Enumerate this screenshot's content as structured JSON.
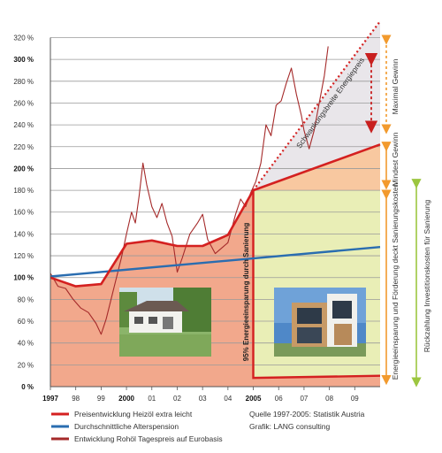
{
  "chart_data": {
    "type": "line",
    "x_ticks": [
      "1997",
      "98",
      "99",
      "2000",
      "01",
      "02",
      "03",
      "04",
      "2005",
      "06",
      "07",
      "08",
      "09"
    ],
    "x_ticks_bold": [
      "1997",
      "2000",
      "2005"
    ],
    "xlim": [
      1997,
      2010
    ],
    "ylim": [
      0,
      320
    ],
    "y_ticks": [
      {
        "v": 0,
        "label": "0 %"
      },
      {
        "v": 20,
        "label": "20 %"
      },
      {
        "v": 40,
        "label": "40 %"
      },
      {
        "v": 60,
        "label": "60 %"
      },
      {
        "v": 80,
        "label": "80 %"
      },
      {
        "v": 100,
        "label": "100 %"
      },
      {
        "v": 120,
        "label": "120 %"
      },
      {
        "v": 140,
        "label": "140 %"
      },
      {
        "v": 160,
        "label": "160 %"
      },
      {
        "v": 180,
        "label": "180 %"
      },
      {
        "v": 200,
        "label": "200 %"
      },
      {
        "v": 220,
        "label": "220 %"
      },
      {
        "v": 240,
        "label": "240 %"
      },
      {
        "v": 260,
        "label": "260 %"
      },
      {
        "v": 280,
        "label": "280 %"
      },
      {
        "v": 300,
        "label": "300 %"
      },
      {
        "v": 320,
        "label": "320 %"
      }
    ],
    "y_ticks_bold": [
      0,
      100,
      200,
      300
    ],
    "series": [
      {
        "name": "Preisentwicklung Heizöl extra leicht",
        "color": "#d42020",
        "points": [
          [
            1997.0,
            100
          ],
          [
            1998.0,
            92
          ],
          [
            1999.0,
            94
          ],
          [
            2000.0,
            131
          ],
          [
            2001.0,
            134
          ],
          [
            2002.0,
            129
          ],
          [
            2003.0,
            129
          ],
          [
            2004.0,
            139
          ],
          [
            2005.0,
            180
          ],
          [
            2010.0,
            222
          ]
        ]
      },
      {
        "name": "Durchschnittliche Alterspension",
        "color": "#2a6db0",
        "points": [
          [
            1997.0,
            101
          ],
          [
            2010.0,
            128
          ]
        ]
      },
      {
        "name": "Entwicklung Rohöl Tagespreis auf Eurobasis",
        "color": "#a52a2a",
        "points": [
          [
            1997.0,
            104
          ],
          [
            1997.3,
            92
          ],
          [
            1997.6,
            90
          ],
          [
            1997.9,
            80
          ],
          [
            1998.2,
            72
          ],
          [
            1998.5,
            68
          ],
          [
            1998.8,
            58
          ],
          [
            1999.0,
            48
          ],
          [
            1999.2,
            62
          ],
          [
            1999.5,
            90
          ],
          [
            1999.8,
            118
          ],
          [
            2000.0,
            140
          ],
          [
            2000.2,
            160
          ],
          [
            2000.35,
            150
          ],
          [
            2000.5,
            175
          ],
          [
            2000.65,
            205
          ],
          [
            2000.8,
            185
          ],
          [
            2001.0,
            165
          ],
          [
            2001.2,
            155
          ],
          [
            2001.4,
            168
          ],
          [
            2001.6,
            150
          ],
          [
            2001.8,
            138
          ],
          [
            2002.0,
            105
          ],
          [
            2002.2,
            118
          ],
          [
            2002.5,
            140
          ],
          [
            2002.8,
            150
          ],
          [
            2003.0,
            158
          ],
          [
            2003.2,
            135
          ],
          [
            2003.5,
            122
          ],
          [
            2003.8,
            128
          ],
          [
            2004.0,
            132
          ],
          [
            2004.3,
            158
          ],
          [
            2004.5,
            172
          ],
          [
            2004.7,
            165
          ],
          [
            2004.9,
            178
          ],
          [
            2005.1,
            188
          ],
          [
            2005.3,
            205
          ],
          [
            2005.5,
            240
          ],
          [
            2005.7,
            230
          ],
          [
            2005.9,
            258
          ],
          [
            2006.1,
            262
          ],
          [
            2006.3,
            278
          ],
          [
            2006.5,
            292
          ],
          [
            2006.7,
            268
          ],
          [
            2006.9,
            248
          ],
          [
            2007.0,
            235
          ],
          [
            2007.2,
            218
          ],
          [
            2007.4,
            235
          ],
          [
            2007.6,
            260
          ],
          [
            2007.8,
            285
          ],
          [
            2007.95,
            312
          ]
        ]
      }
    ],
    "reference_lines": {
      "max_gain_line": [
        [
          2005.0,
          180
        ],
        [
          2010.0,
          335
        ]
      ],
      "drop_line": [
        [
          2005.0,
          180
        ],
        [
          2005.0,
          8
        ],
        [
          2010.0,
          10
        ]
      ]
    },
    "annotations": [
      {
        "text": "Schwankungsbreite Energiepreis"
      },
      {
        "text": "Maximal Gewinn"
      },
      {
        "text": "Mindest Gewinn"
      },
      {
        "text": "Energieeinsparung und Förderung deckt Sanierungskosten"
      },
      {
        "text": "Rückzahlung Investitionskosten für Sanierung"
      },
      {
        "text": "95% Energieeinsparung durch Sanierung"
      }
    ],
    "legend": [
      {
        "text": "Preisentwicklung Heizöl extra leicht",
        "color": "#d42020"
      },
      {
        "text": "Durchschnittliche Alterspension",
        "color": "#2a6db0"
      },
      {
        "text": "Entwicklung Rohöl Tagespreis auf Eurobasis",
        "color": "#a52a2a"
      }
    ],
    "source": "Quelle 1997-2005: Statistik Austria",
    "credit": "Grafik: LANG consulting",
    "colors": {
      "salmon_area": "#f2a88c",
      "green_area": "#e9eeb6",
      "orange_area": "#f8c8a0",
      "grey_area": "#e9e6ea",
      "orange_arrow": "#f29a2e",
      "green_arrow": "#9cc640",
      "dark_red_arrow": "#c81f1f"
    }
  }
}
